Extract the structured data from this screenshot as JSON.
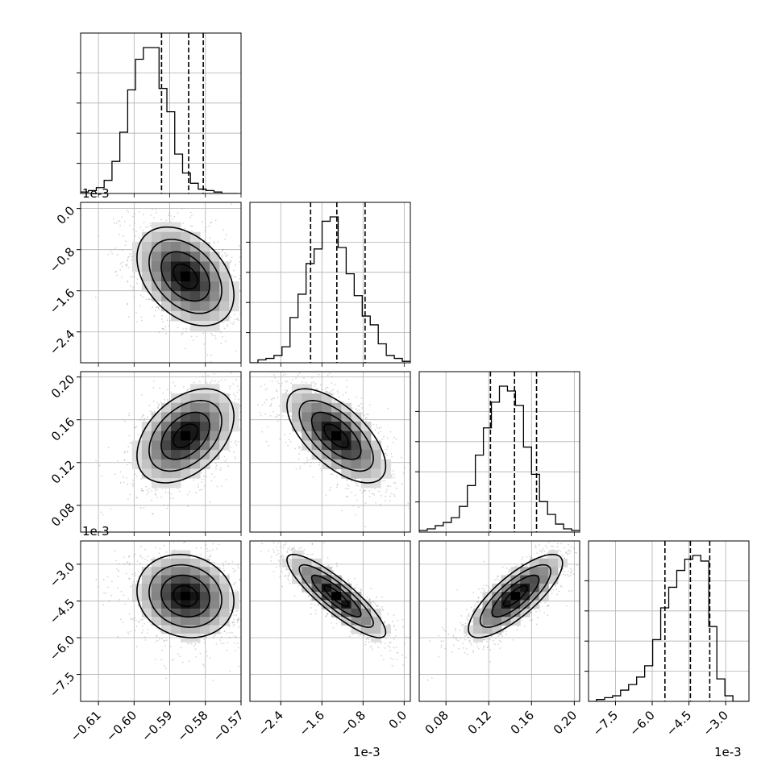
{
  "colors": {
    "density_dark": "#000000",
    "density_mid": "#555555",
    "scatter": "#888888",
    "grid": "#b0b0b0"
  },
  "offsets": {
    "p1_y": "1e-3",
    "p2_y": "1e-3",
    "p3_y": "1e-3",
    "p1_x": "1e-3",
    "p3_x": "1e-3"
  },
  "chart_data": {
    "type": "corner",
    "grid": true,
    "parameters": [
      {
        "index": 0,
        "range": [
          -0.615,
          -0.57
        ],
        "ticks": [
          -0.61,
          -0.6,
          -0.59,
          -0.58,
          -0.57
        ],
        "tick_labels": [
          "−0.61",
          "−0.60",
          "−0.59",
          "−0.58",
          "−0.57"
        ],
        "quantiles": [
          -0.5923,
          -0.5847,
          -0.5806
        ],
        "hist_edges_start": -0.615,
        "hist_bin_width": 0.0022,
        "hist_counts": [
          1,
          2,
          4,
          9,
          22,
          42,
          71,
          92,
          100,
          100,
          72,
          56,
          27,
          14,
          7,
          3,
          2,
          1,
          0,
          0
        ]
      },
      {
        "index": 1,
        "range": [
          -3.0,
          0.12
        ],
        "ticks": [
          -2.4,
          -1.6,
          -0.8,
          0.0
        ],
        "tick_labels": [
          "−2.4",
          "−1.6",
          "−0.8",
          "0.0"
        ],
        "quantiles": [
          -1.82,
          -1.31,
          -0.76
        ],
        "hist_edges_start": -3.0,
        "hist_bin_width": 0.156,
        "hist_counts": [
          0,
          2,
          3,
          5,
          11,
          31,
          47,
          68,
          78,
          97,
          100,
          79,
          61,
          46,
          32,
          26,
          13,
          5,
          3,
          1
        ]
      },
      {
        "index": 2,
        "range": [
          0.055,
          0.205
        ],
        "ticks": [
          0.08,
          0.12,
          0.16,
          0.2
        ],
        "tick_labels": [
          "0.08",
          "0.12",
          "0.16",
          "0.20"
        ],
        "quantiles": [
          0.1216,
          0.1441,
          0.1647
        ],
        "hist_edges_start": 0.055,
        "hist_bin_width": 0.0075,
        "hist_counts": [
          1,
          2,
          4,
          6,
          9,
          16,
          29,
          48,
          65,
          81,
          91,
          88,
          79,
          53,
          36,
          19,
          11,
          5,
          2,
          1
        ]
      },
      {
        "index": 3,
        "range": [
          -8.6,
          -2.05
        ],
        "ticks": [
          -7.5,
          -6.0,
          -4.5,
          -3.0
        ],
        "tick_labels": [
          "−7.5",
          "−6.0",
          "−4.5",
          "−3.0"
        ],
        "quantiles": [
          -5.48,
          -4.44,
          -3.65
        ],
        "hist_edges_start": -8.6,
        "hist_bin_width": 0.3275,
        "hist_counts": [
          0,
          1,
          2,
          3,
          6,
          9,
          13,
          19,
          33,
          50,
          61,
          70,
          76,
          78,
          75,
          40,
          12,
          3,
          0,
          0
        ]
      }
    ],
    "pairs": [
      {
        "x": 0,
        "y": 1,
        "mean": [
          -0.5856,
          -1.32
        ],
        "std": [
          0.0068,
          0.48
        ],
        "corr": -0.38
      },
      {
        "x": 0,
        "y": 2,
        "mean": [
          -0.5856,
          0.145
        ],
        "std": [
          0.0068,
          0.022
        ],
        "corr": 0.42
      },
      {
        "x": 1,
        "y": 2,
        "mean": [
          -1.32,
          0.145
        ],
        "std": [
          0.48,
          0.022
        ],
        "corr": -0.64
      },
      {
        "x": 0,
        "y": 3,
        "mean": [
          -0.5856,
          -4.3
        ],
        "std": [
          0.0068,
          0.85
        ],
        "corr": -0.12
      },
      {
        "x": 1,
        "y": 3,
        "mean": [
          -1.32,
          -4.3
        ],
        "std": [
          0.48,
          0.85
        ],
        "corr": -0.87
      },
      {
        "x": 2,
        "y": 3,
        "mean": [
          0.145,
          -4.3
        ],
        "std": [
          0.022,
          0.85
        ],
        "corr": 0.79
      }
    ]
  }
}
